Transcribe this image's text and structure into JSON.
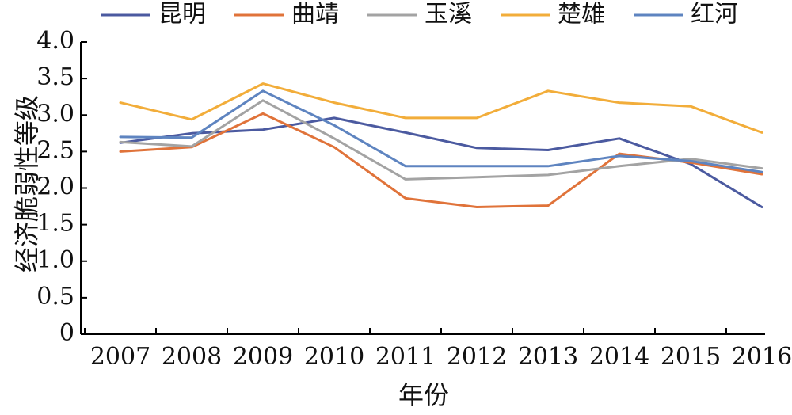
{
  "chart_data": {
    "type": "line",
    "title": "",
    "xlabel": "年份",
    "ylabel": "经济脆弱性等级",
    "x": [
      "2007",
      "2008",
      "2009",
      "2010",
      "2011",
      "2012",
      "2013",
      "2014",
      "2015",
      "2016"
    ],
    "ylim": [
      0,
      4.0
    ],
    "yticks": [
      "0",
      "0.5",
      "1.0",
      "1.5",
      "2.0",
      "2.5",
      "3.0",
      "3.5",
      "4.0"
    ],
    "ytick_values": [
      0,
      0.5,
      1.0,
      1.5,
      2.0,
      2.5,
      3.0,
      3.5,
      4.0
    ],
    "grid": false,
    "legend_position": "top",
    "series": [
      {
        "name": "昆明",
        "color": "#4b5aa0",
        "values": [
          2.62,
          2.75,
          2.8,
          2.96,
          2.76,
          2.55,
          2.52,
          2.68,
          2.33,
          1.74
        ]
      },
      {
        "name": "曲靖",
        "color": "#e0733a",
        "values": [
          2.5,
          2.56,
          3.02,
          2.56,
          1.86,
          1.74,
          1.76,
          2.47,
          2.35,
          2.19
        ]
      },
      {
        "name": "玉溪",
        "color": "#a3a3a3",
        "values": [
          2.63,
          2.57,
          3.2,
          2.68,
          2.12,
          2.15,
          2.18,
          2.3,
          2.4,
          2.27
        ]
      },
      {
        "name": "楚雄",
        "color": "#f2ad3a",
        "values": [
          3.17,
          2.94,
          3.43,
          3.17,
          2.96,
          2.96,
          3.33,
          3.17,
          3.12,
          2.76
        ]
      },
      {
        "name": "红河",
        "color": "#5e84c0",
        "values": [
          2.7,
          2.69,
          3.33,
          2.86,
          2.3,
          2.3,
          2.3,
          2.44,
          2.37,
          2.22
        ]
      }
    ]
  }
}
